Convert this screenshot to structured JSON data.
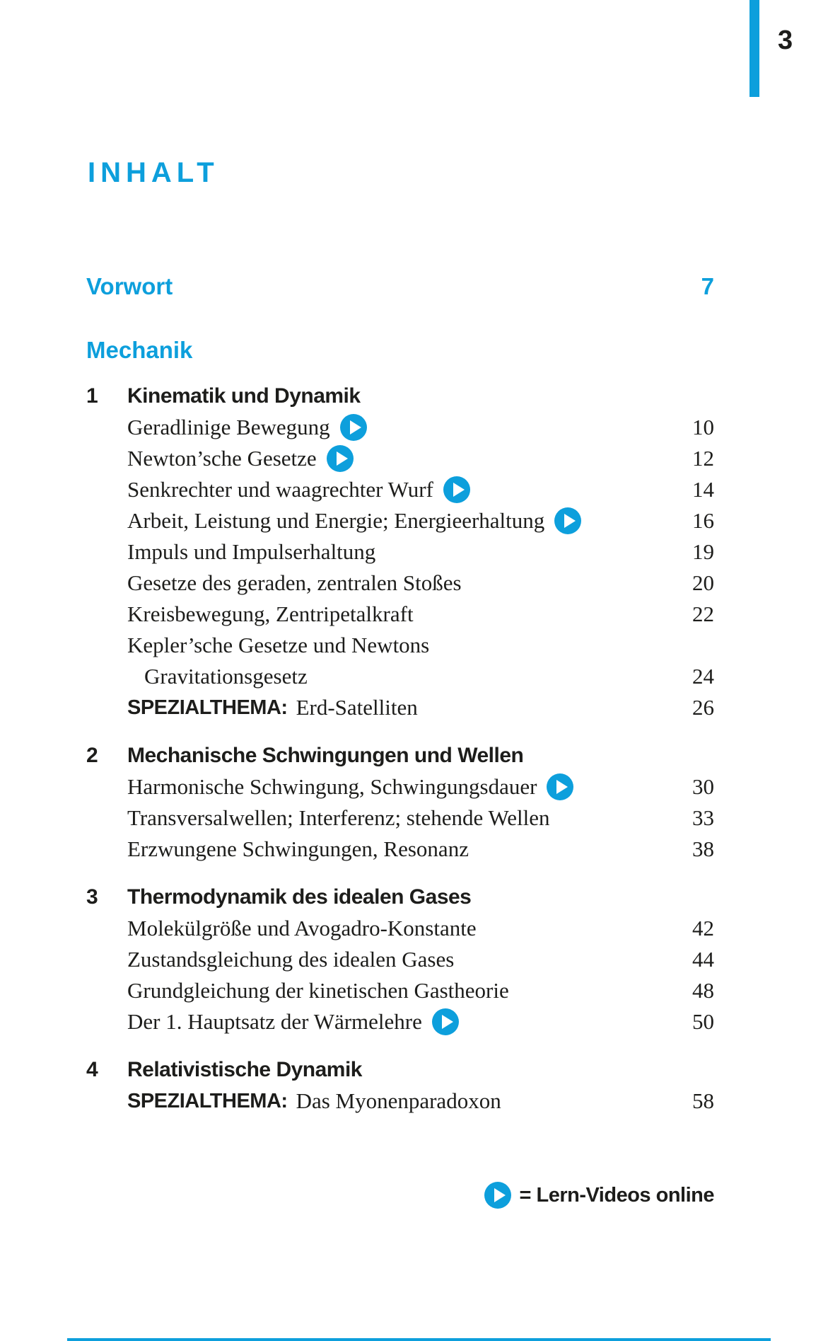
{
  "page": {
    "folio": "3",
    "title": "INHALT",
    "accent_color": "#0D9FDC",
    "text_color": "#1d1d1b"
  },
  "vorwort": {
    "label": "Vorwort",
    "page": "7"
  },
  "part": {
    "label": "Mechanik"
  },
  "chapters": [
    {
      "num": "1",
      "title": "Kinematik und Dynamik",
      "entries": [
        {
          "text": "Geradlinige Bewegung",
          "video": true,
          "page": "10"
        },
        {
          "text": "Newton’sche Gesetze",
          "video": true,
          "page": "12"
        },
        {
          "text": "Senkrechter und waagrechter Wurf",
          "video": true,
          "page": "14"
        },
        {
          "text": "Arbeit, Leistung und Energie; Energieerhaltung",
          "video": true,
          "page": "16"
        },
        {
          "text": "Impuls und Impulserhaltung",
          "video": false,
          "page": "19"
        },
        {
          "text": "Gesetze des geraden, zentralen Stoßes",
          "video": false,
          "page": "20"
        },
        {
          "text": "Kreisbewegung, Zentripetalkraft",
          "video": false,
          "page": "22"
        },
        {
          "text": "Kepler’sche Gesetze und Newtons",
          "video": false,
          "page": ""
        },
        {
          "text": "Gravitationsgesetz",
          "indent": true,
          "video": false,
          "page": "24"
        },
        {
          "prefix": "SPEZIALTHEMA:",
          "text": "Erd-Satelliten",
          "video": false,
          "page": "26"
        }
      ]
    },
    {
      "num": "2",
      "title": "Mechanische Schwingungen und Wellen",
      "entries": [
        {
          "text": "Harmonische Schwingung, Schwingungsdauer",
          "video": true,
          "page": "30"
        },
        {
          "text": "Transversalwellen; Interferenz; stehende Wellen",
          "video": false,
          "page": "33"
        },
        {
          "text": "Erzwungene Schwingungen, Resonanz",
          "video": false,
          "page": "38"
        }
      ]
    },
    {
      "num": "3",
      "title": "Thermodynamik des idealen Gases",
      "entries": [
        {
          "text": "Molekülgröße und Avogadro-Konstante",
          "video": false,
          "page": "42"
        },
        {
          "text": "Zustandsgleichung des idealen Gases",
          "video": false,
          "page": "44"
        },
        {
          "text": "Grundgleichung der kinetischen Gastheorie",
          "video": false,
          "page": "48"
        },
        {
          "text": "Der 1. Hauptsatz der Wärmelehre",
          "video": true,
          "page": "50"
        }
      ]
    },
    {
      "num": "4",
      "title": "Relativistische Dynamik",
      "entries": [
        {
          "prefix": "SPEZIALTHEMA:",
          "text": "Das Myonenparadoxon",
          "video": false,
          "page": "58"
        }
      ]
    }
  ],
  "legend": {
    "label": "= Lern-Videos online",
    "icon": "play-video-icon"
  }
}
